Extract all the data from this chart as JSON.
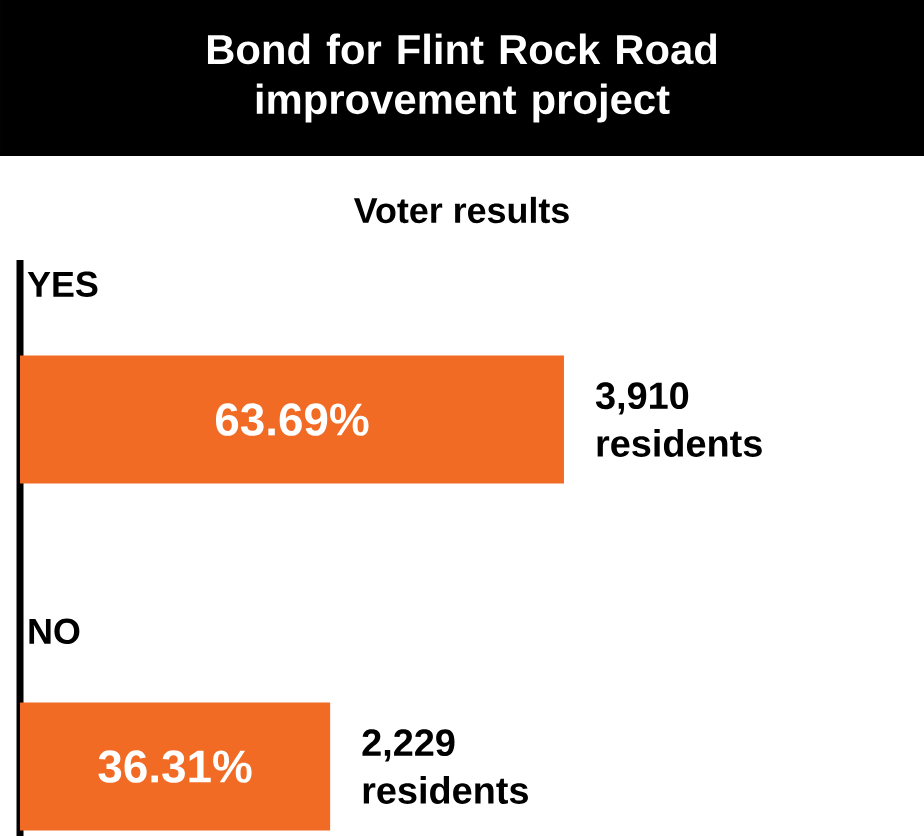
{
  "chart_data": {
    "type": "bar",
    "orientation": "horizontal",
    "title": "Bond for Flint Rock Road improvement project",
    "subtitle": "Voter results",
    "categories": [
      "YES",
      "NO"
    ],
    "values": [
      63.69,
      36.31
    ],
    "color": "#f26b25",
    "value_labels": [
      "63.69%",
      "36.31%"
    ],
    "annotations": [
      "3,910 residents",
      "2,229 residents"
    ]
  }
}
